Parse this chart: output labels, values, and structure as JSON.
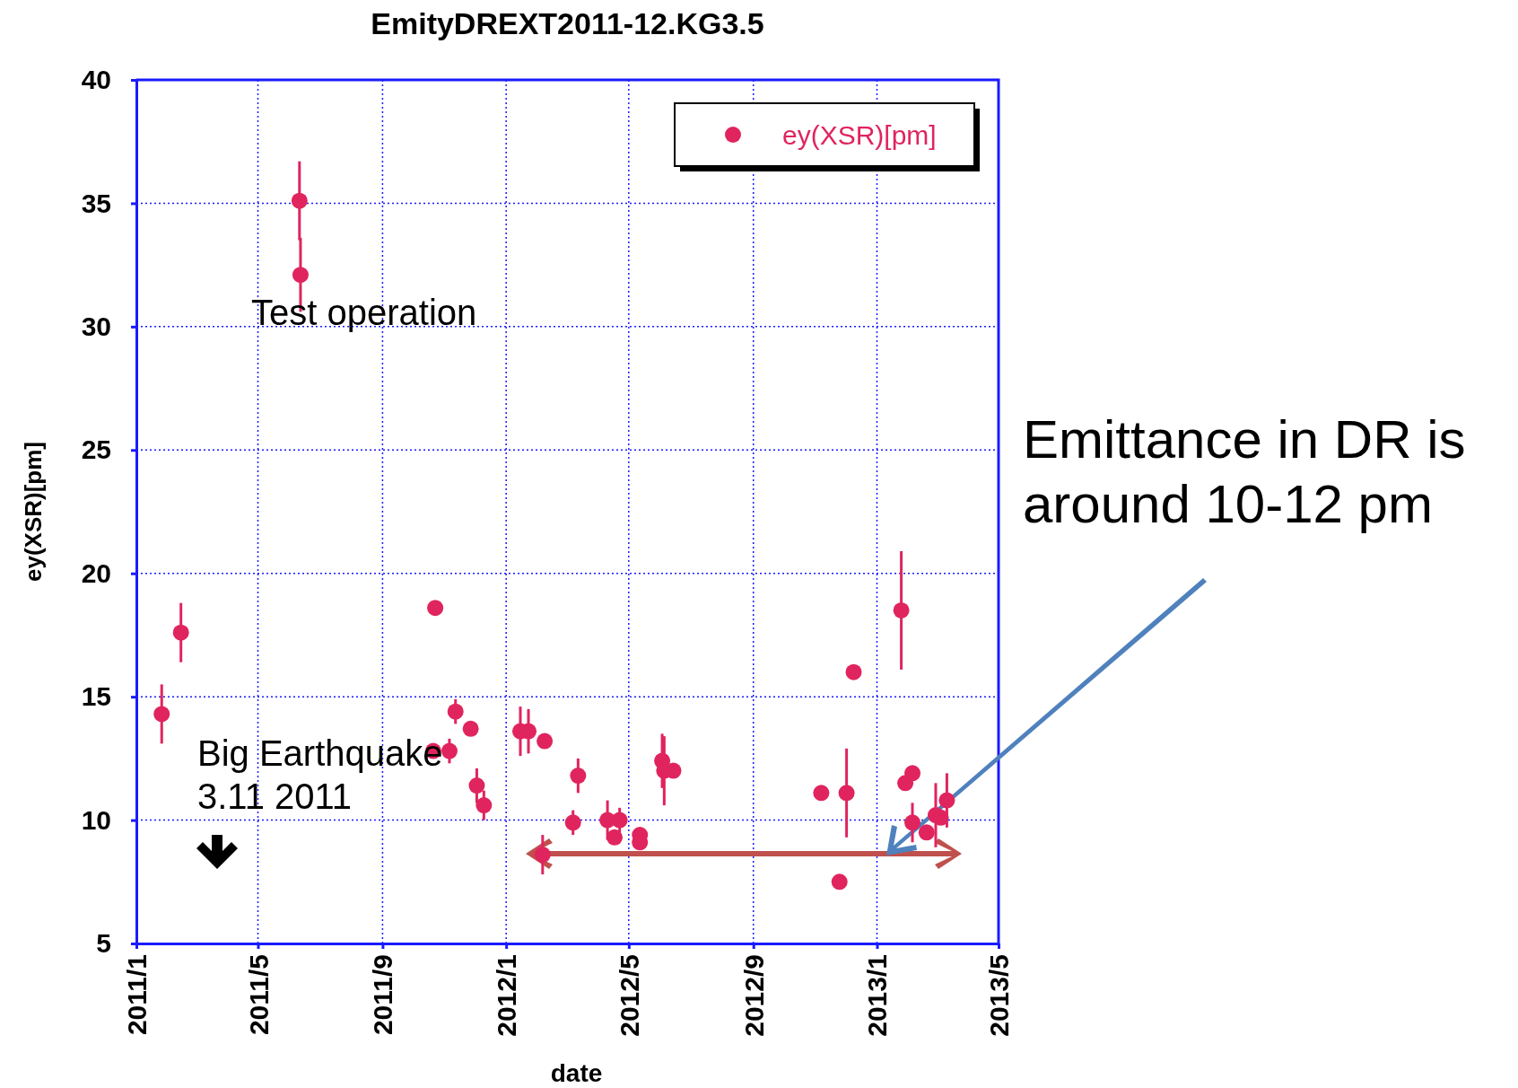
{
  "chart_data": {
    "type": "scatter",
    "title": "EmityDREXT2011-12.KG3.5",
    "xlabel": "date",
    "ylabel": "ey(XSR)[pm]",
    "x": [
      "2011-01-26",
      "2011-02-14",
      "2011-06-11",
      "2011-06-12",
      "2011-10-21",
      "2011-10-23",
      "2011-11-06",
      "2011-11-12",
      "2011-11-27",
      "2011-12-03",
      "2011-12-10",
      "2012-01-15",
      "2012-01-23",
      "2012-02-06",
      "2012-02-08",
      "2012-03-07",
      "2012-03-12",
      "2012-04-10",
      "2012-04-17",
      "2012-04-22",
      "2012-05-12",
      "2012-05-12",
      "2012-06-03",
      "2012-06-05",
      "2012-06-14",
      "2012-11-07",
      "2012-11-25",
      "2012-12-02",
      "2012-12-09",
      "2013-01-25",
      "2013-01-29",
      "2013-02-05",
      "2013-02-05",
      "2013-02-19",
      "2013-02-28",
      "2013-03-05",
      "2013-03-11"
    ],
    "series": [
      {
        "name": "ey(XSR)[pm]",
        "color": "#e0245e",
        "values": [
          14.3,
          17.6,
          35.1,
          32.1,
          12.8,
          18.6,
          12.8,
          14.4,
          13.7,
          11.4,
          10.6,
          13.6,
          13.6,
          8.6,
          13.2,
          9.9,
          11.8,
          10.0,
          9.3,
          10.0,
          9.4,
          9.1,
          12.4,
          12.0,
          12.0,
          11.1,
          7.5,
          11.1,
          16.0,
          18.5,
          11.5,
          11.9,
          9.9,
          9.5,
          10.2,
          10.1,
          10.8
        ],
        "errors": [
          1.2,
          1.2,
          1.6,
          1.5,
          null,
          null,
          0.5,
          0.5,
          null,
          0.7,
          0.6,
          1.0,
          0.9,
          0.8,
          null,
          0.5,
          0.7,
          0.8,
          null,
          0.5,
          0.3,
          null,
          1.1,
          1.4,
          null,
          null,
          null,
          1.8,
          null,
          2.4,
          null,
          null,
          0.8,
          null,
          1.3,
          null,
          1.1
        ]
      }
    ],
    "xlim": [
      "2011-01",
      "2013-05"
    ],
    "xticks": [
      {
        "value": "2011-01",
        "label": "2011/1"
      },
      {
        "value": "2011-05",
        "label": "2011/5"
      },
      {
        "value": "2011-09",
        "label": "2011/9"
      },
      {
        "value": "2012-01",
        "label": "2012/1"
      },
      {
        "value": "2012-05",
        "label": "2012/5"
      },
      {
        "value": "2012-09",
        "label": "2012/9"
      },
      {
        "value": "2013-01",
        "label": "2013/1"
      },
      {
        "value": "2013-05",
        "label": "2013/5"
      }
    ],
    "ylim": [
      5,
      40
    ],
    "yticks": [
      5,
      10,
      15,
      20,
      25,
      30,
      35,
      40
    ],
    "grid": true,
    "legend": "top right",
    "marker": "circle",
    "annotations": [
      "Test operation",
      "Big Earthquake\n3.11 2011",
      "Emittance in DR is\naround 10-12 pm"
    ]
  }
}
